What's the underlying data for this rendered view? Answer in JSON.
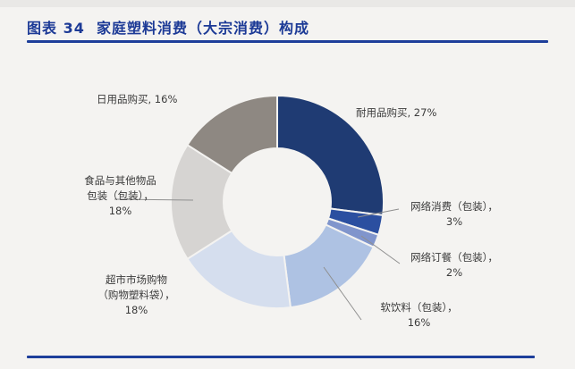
{
  "header": {
    "figure_label": "图表 34",
    "title": "图表 34  家庭塑料消费（大宗消费）构成"
  },
  "colors": {
    "accent_navy": "#1c3a96",
    "rule": "#1d3e9a",
    "background": "#f4f3f1",
    "label_text": "#3b3b3b",
    "leader_line": "#8f8f8f"
  },
  "chart_data": {
    "type": "pie",
    "subtype": "donut",
    "title": "家庭塑料消费（大宗消费）构成",
    "unit": "%",
    "direction": "clockwise",
    "start_angle_deg": 0,
    "legend_position": "none",
    "categories": [
      "耐用品购买",
      "网络消费（包装）",
      "网络订餐（包装）",
      "软饮料（包装）",
      "超市市场购物（购物塑料袋）",
      "食品与其他物品包装（包装）",
      "日用品购买"
    ],
    "values": [
      27,
      3,
      2,
      16,
      18,
      18,
      16
    ],
    "slice_colors": [
      "#1f3b73",
      "#2b4fa0",
      "#8095cc",
      "#aec2e3",
      "#d5deee",
      "#d6d4d2",
      "#8e8882"
    ],
    "callouts": [
      {
        "name": "durable-goods",
        "lines": [
          "耐用品购买, 27%"
        ]
      },
      {
        "name": "online-consumption",
        "lines": [
          "网络消费（包装），",
          "3%"
        ]
      },
      {
        "name": "online-food-ordering",
        "lines": [
          "网络订餐（包装），",
          "2%"
        ]
      },
      {
        "name": "soft-drinks",
        "lines": [
          "软饮料（包装），",
          "16%"
        ]
      },
      {
        "name": "supermarket-shopping",
        "lines": [
          "超市市场购物",
          "（购物塑料袋），",
          "18%"
        ]
      },
      {
        "name": "food-other-packaging",
        "lines": [
          "食品与其他物品",
          "包装（包装），",
          "18%"
        ]
      },
      {
        "name": "daily-goods",
        "lines": [
          "日用品购买, 16%"
        ]
      }
    ]
  }
}
